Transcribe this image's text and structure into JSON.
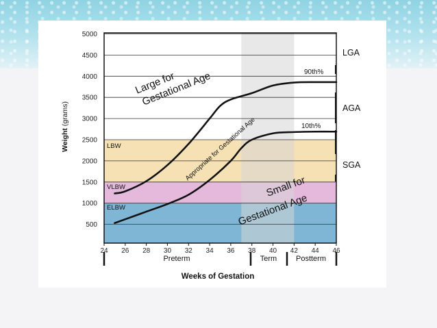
{
  "chart_data": {
    "type": "line",
    "title": "",
    "xlabel": "Weeks of Gestation",
    "ylabel": "Weight",
    "ylabel_unit": "(grams)",
    "xlim": [
      24,
      46
    ],
    "ylim": [
      0,
      5000
    ],
    "x_ticks": [
      "24",
      "26",
      "28",
      "30",
      "32",
      "34",
      "36",
      "38",
      "40",
      "42",
      "44",
      "46"
    ],
    "y_ticks": [
      "500",
      "1000",
      "1500",
      "2000",
      "2500",
      "3000",
      "3500",
      "4000",
      "4500",
      "5000"
    ],
    "series": [
      {
        "name": "90th%",
        "color": "#111111",
        "x": [
          25,
          26,
          28,
          30,
          32,
          34,
          35,
          36,
          38,
          40,
          42,
          44,
          46
        ],
        "y": [
          1230,
          1280,
          1520,
          1900,
          2400,
          3000,
          3300,
          3450,
          3600,
          3780,
          3850,
          3860,
          3860
        ]
      },
      {
        "name": "10th%",
        "color": "#111111",
        "x": [
          25,
          26,
          28,
          30,
          32,
          34,
          36,
          37,
          38,
          40,
          42,
          44,
          46
        ],
        "y": [
          530,
          620,
          800,
          980,
          1200,
          1550,
          2000,
          2300,
          2500,
          2650,
          2680,
          2690,
          2690
        ]
      }
    ],
    "bands": [
      {
        "label": "ELBW",
        "y0": 500,
        "y1": 1000,
        "color": "#7fb6d6"
      },
      {
        "label": "VLBW",
        "y0": 1000,
        "y1": 1500,
        "color": "#e4b9dc"
      },
      {
        "label": "LBW",
        "y0": 1500,
        "y1": 2500,
        "color": "#f6e1b4"
      }
    ],
    "term_band": {
      "x0": 37,
      "x1": 42,
      "color": "#d5d5d5"
    },
    "region_labels": {
      "lga_l1": "Large for",
      "lga_l2": "Gestational Age",
      "aga": "Appropriate for Gestational Age",
      "sga_l1": "Small for",
      "sga_l2": "Gestational Age"
    },
    "side_labels": [
      "LGA",
      "AGA",
      "SGA"
    ],
    "periods": [
      "Preterm",
      "Term",
      "Postterm"
    ],
    "grid": true
  }
}
